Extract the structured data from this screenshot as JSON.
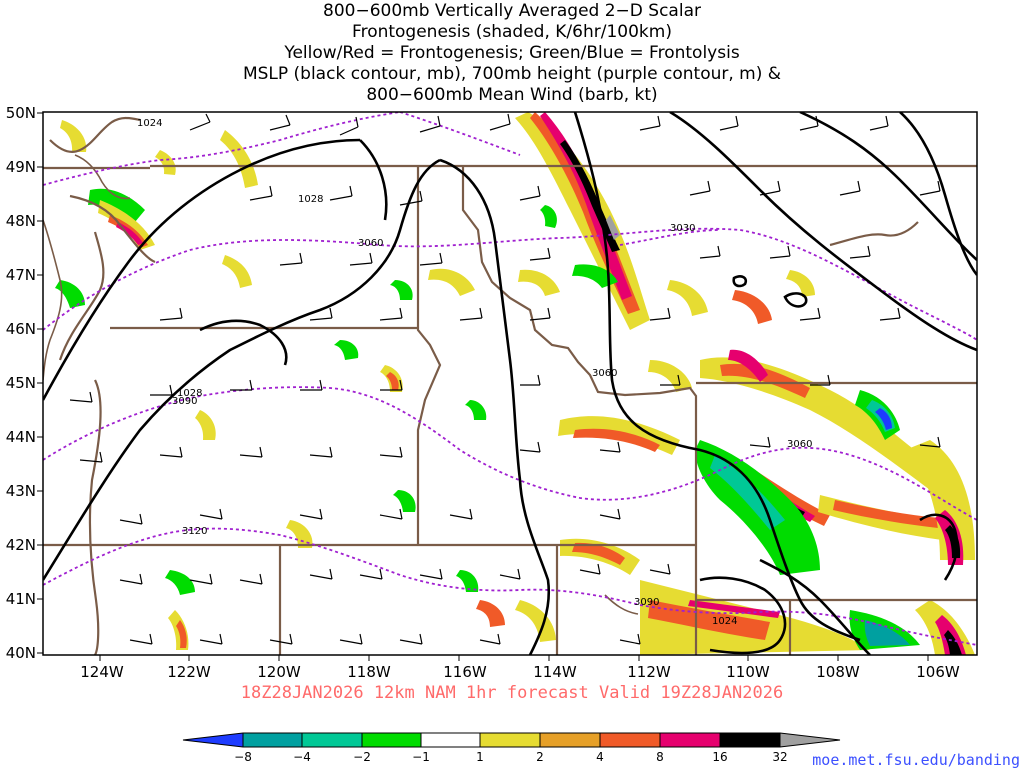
{
  "title": {
    "lines": [
      "800−600mb Vertically Averaged 2−D Scalar",
      "Frontogenesis (shaded, K/6hr/100km)",
      "Yellow/Red = Frontogenesis;  Green/Blue = Frontolysis",
      "MSLP (black contour, mb), 700mb height (purple contour, m) &",
      "800−600mb Mean Wind (barb, kt)"
    ]
  },
  "axes": {
    "lat_labels": [
      "50N",
      "49N",
      "48N",
      "47N",
      "46N",
      "45N",
      "44N",
      "43N",
      "42N",
      "41N",
      "40N"
    ],
    "lon_labels": [
      "124W",
      "122W",
      "120W",
      "118W",
      "116W",
      "114W",
      "112W",
      "110W",
      "108W",
      "106W"
    ]
  },
  "contour_labels": [
    "1024",
    "1028",
    "3060",
    "3030",
    "3060",
    "1028",
    "3090",
    "3060",
    "3120",
    "3090",
    "1024"
  ],
  "footer": {
    "run_text": "18Z28JAN2026  12km  NAM  1hr forecast Valid  19Z28JAN2026",
    "color": "#ff6a6a"
  },
  "colorbar": {
    "labels": [
      "−8",
      "−4",
      "−2",
      "−1",
      "1",
      "2",
      "4",
      "8",
      "16",
      "32"
    ],
    "colors": [
      "#1e3cff",
      "#00a0a0",
      "#00c896",
      "#00dc00",
      "#ffffff",
      "#e6dc32",
      "#e6a028",
      "#f05a28",
      "#e6006e",
      "#000000",
      "#a0a0a0"
    ]
  },
  "credit": {
    "text": "moe.met.fsu.edu/banding",
    "color": "#3c50ff"
  }
}
